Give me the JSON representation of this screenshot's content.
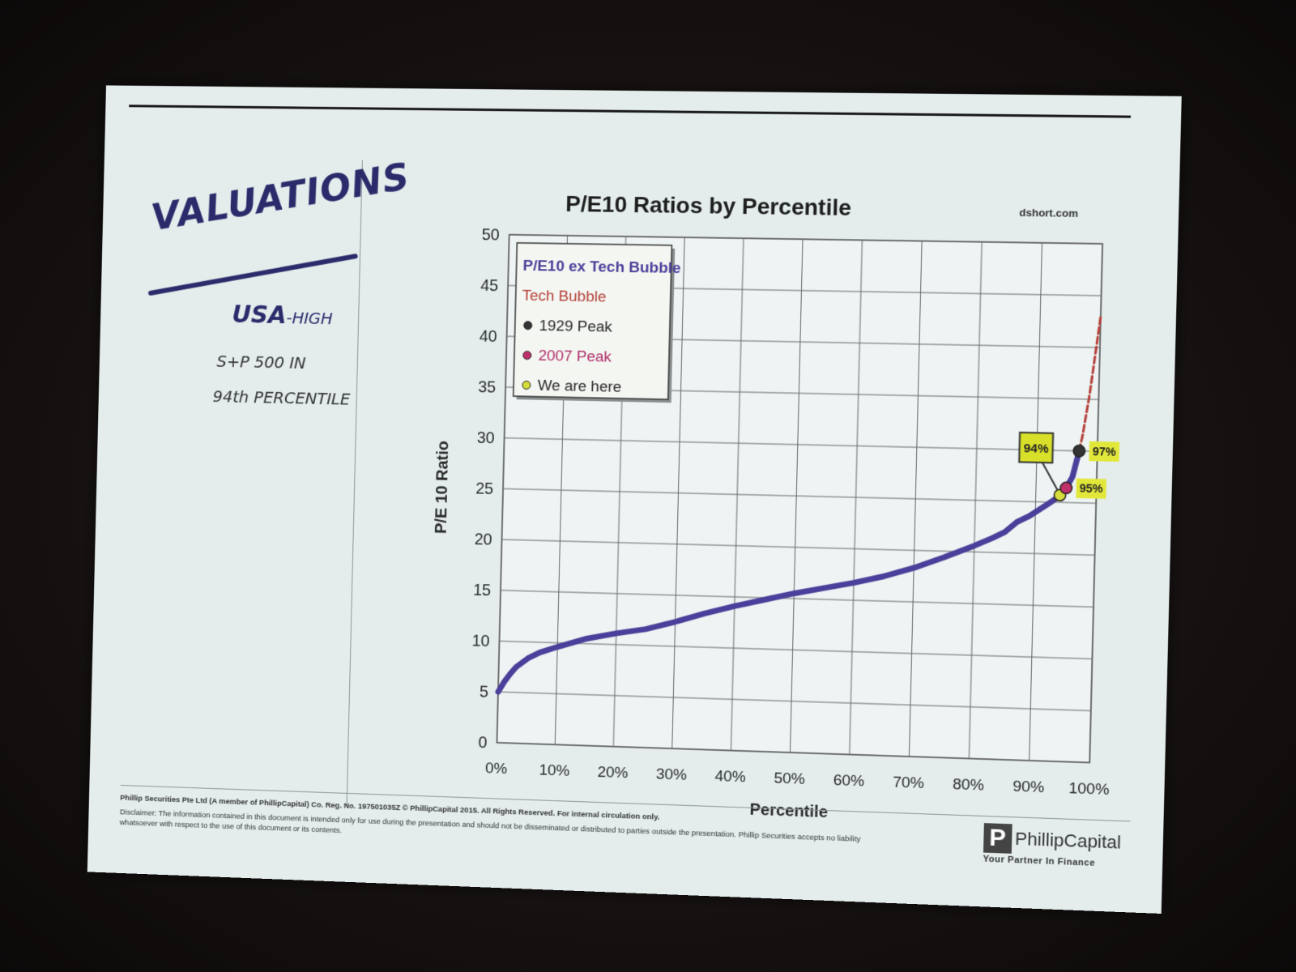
{
  "slide": {
    "handwritten_title": "VALUATIONS",
    "note_usa": "USA",
    "note_high": "-HIGH",
    "note_sp": "S+P 500 IN",
    "note_percentile": "94th PERCENTILE"
  },
  "chart_data": {
    "type": "line",
    "title": "P/E10 Ratios by Percentile",
    "source": "dshort.com",
    "xlabel": "Percentile",
    "ylabel": "P/E 10 Ratio",
    "xlim": [
      0,
      100
    ],
    "ylim": [
      0,
      50
    ],
    "x_ticks": [
      "0%",
      "10%",
      "20%",
      "30%",
      "40%",
      "50%",
      "60%",
      "70%",
      "80%",
      "90%",
      "100%"
    ],
    "y_ticks": [
      "0",
      "5",
      "10",
      "15",
      "20",
      "25",
      "30",
      "35",
      "40",
      "45",
      "50"
    ],
    "grid": true,
    "legend_position": "top-left",
    "legend": [
      {
        "label": "P/E10 ex Tech Bubble",
        "color": "#4a3f9a",
        "kind": "line"
      },
      {
        "label": "Tech Bubble",
        "color": "#b5413a",
        "kind": "line"
      },
      {
        "label": "1929 Peak",
        "color": "#333333",
        "kind": "dot"
      },
      {
        "label": "2007 Peak",
        "color": "#c0306a",
        "kind": "dot"
      },
      {
        "label": "We are here",
        "color": "#d6dc3a",
        "kind": "dot"
      }
    ],
    "series": [
      {
        "name": "P/E10 ex Tech Bubble",
        "color": "#4a3f9a",
        "x": [
          0,
          1,
          2,
          3,
          5,
          7,
          10,
          15,
          20,
          25,
          30,
          35,
          40,
          45,
          50,
          55,
          60,
          65,
          70,
          75,
          80,
          83,
          85,
          87,
          89,
          90,
          91,
          92,
          93,
          94,
          95,
          96,
          97
        ],
        "y": [
          5.0,
          6.0,
          6.8,
          7.5,
          8.4,
          9.0,
          9.6,
          10.5,
          11.1,
          11.6,
          12.4,
          13.3,
          14.1,
          14.8,
          15.5,
          16.1,
          16.7,
          17.4,
          18.3,
          19.4,
          20.6,
          21.4,
          22.0,
          23.0,
          23.6,
          24.0,
          24.4,
          24.8,
          25.2,
          25.7,
          26.4,
          27.5,
          30.0
        ]
      },
      {
        "name": "Tech Bubble",
        "color": "#b5413a",
        "x": [
          97,
          97.5,
          98,
          98.5,
          99,
          99.5,
          100
        ],
        "y": [
          30.0,
          31.5,
          33.5,
          35.5,
          38.0,
          40.5,
          43.0
        ]
      }
    ],
    "markers": [
      {
        "name": "We are here",
        "x": 94,
        "y": 25.7,
        "color": "#d6dc3a"
      },
      {
        "name": "2007 Peak",
        "x": 95,
        "y": 26.4,
        "color": "#c0306a"
      },
      {
        "name": "1929 Peak",
        "x": 97,
        "y": 30.0,
        "color": "#333333"
      }
    ],
    "annotations": [
      {
        "text": "94%",
        "x": 94,
        "y": 25.7,
        "style": "box"
      },
      {
        "text": "97%",
        "x": 97,
        "y": 30.0,
        "style": "tag"
      },
      {
        "text": "95%",
        "x": 95,
        "y": 26.4,
        "style": "tag"
      }
    ]
  },
  "footer": {
    "line1": "Phillip Securities Pte Ltd (A member of PhillipCapital) Co. Reg. No. 197501035Z © PhillipCapital 2015. All Rights Reserved. For internal circulation only.",
    "disclaimer": "Disclaimer: The information contained in this document is intended only for use during the presentation and should not be disseminated or distributed to parties outside the presentation. Phillip Securities accepts no liability whatsoever with respect to the use of this document or its contents.",
    "logo_letter": "P",
    "logo_name": "PhillipCapital",
    "logo_tagline": "Your Partner In Finance"
  }
}
